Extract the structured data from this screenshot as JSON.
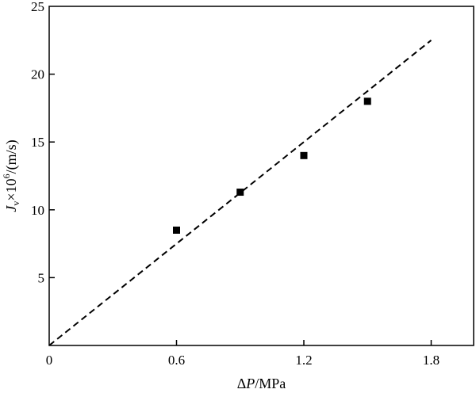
{
  "chart_data": {
    "type": "scatter",
    "xlabel": {
      "prefix": "Δ",
      "var": "P",
      "suffix": "/MPa"
    },
    "ylabel": {
      "var": "J",
      "sub": "v",
      "mid": "×10",
      "sup": "6",
      "suffix": "/(m/s)"
    },
    "xlim": [
      0,
      2.0
    ],
    "ylim": [
      0,
      25
    ],
    "xticks": [
      0,
      0.6,
      1.2,
      1.8
    ],
    "xtick_labels": [
      "0",
      "0.6",
      "1.2",
      "1.8"
    ],
    "yticks": [
      5,
      10,
      15,
      20,
      25
    ],
    "ytick_labels": [
      "5",
      "10",
      "15",
      "20",
      "25"
    ],
    "series": [
      {
        "type": "scatter",
        "marker": "square",
        "x": [
          0.6,
          0.9,
          1.2,
          1.5
        ],
        "y": [
          8.5,
          11.3,
          14.0,
          18.0
        ]
      },
      {
        "type": "line",
        "style": "dashed",
        "x": [
          0,
          1.8
        ],
        "y": [
          0,
          22.5
        ]
      }
    ],
    "grid": false,
    "colors": {
      "marks": "#000000",
      "axes": "#000000"
    }
  }
}
